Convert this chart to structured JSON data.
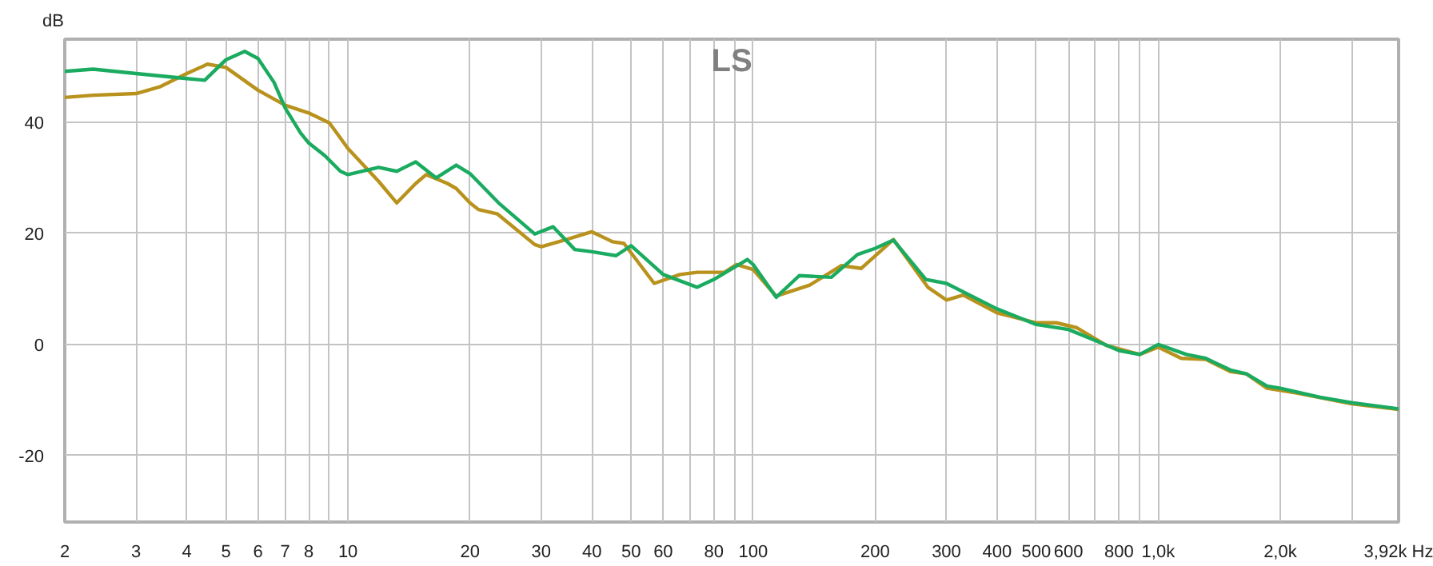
{
  "chart_data": {
    "type": "line",
    "title": "LS",
    "ylabel": "dB",
    "log": "x",
    "grid": true,
    "line_style": "solid",
    "xlim": [
      2,
      3920
    ],
    "ylim": [
      -32,
      55
    ],
    "xticks": [
      2,
      3,
      4,
      5,
      6,
      7,
      8,
      {
        "value": 9,
        "label": null
      },
      10,
      20,
      30,
      40,
      50,
      60,
      {
        "value": 70,
        "label": null
      },
      80,
      {
        "value": 90,
        "label": null
      },
      100,
      200,
      300,
      400,
      500,
      600,
      {
        "value": 700,
        "label": null
      },
      800,
      {
        "value": 900,
        "label": null
      },
      {
        "value": 1000,
        "label": "1,0k"
      },
      {
        "value": 2000,
        "label": "2,0k"
      },
      {
        "value": 3000,
        "label": null
      },
      {
        "value": 3920,
        "label": "3,92k Hz"
      }
    ],
    "yticks": [
      -20,
      0,
      20,
      40
    ],
    "series": [
      {
        "color": "#b8921c",
        "x": [
          2,
          2.35,
          3,
          3.43,
          4,
          4.5,
          5,
          6,
          7,
          8,
          9,
          10,
          11.9,
          13.2,
          14.7,
          15.6,
          17.6,
          18.5,
          20,
          21,
          23.4,
          28.9,
          30,
          34.6,
          40,
          45,
          48,
          57,
          66,
          72.8,
          85,
          91,
          100,
          114,
          138,
          165,
          185,
          222,
          270,
          300,
          330,
          400,
          500,
          560,
          630,
          745,
          900,
          1000,
          1140,
          1310,
          1506,
          1650,
          1855,
          2210,
          3000,
          3920
        ],
        "values": [
          44.5,
          44.9,
          45.2,
          46.4,
          48.8,
          50.5,
          49.9,
          45.8,
          43.1,
          41.7,
          39.9,
          35.3,
          29.4,
          25.5,
          29.0,
          30.6,
          29.0,
          28.1,
          25.5,
          24.3,
          23.5,
          18.0,
          17.6,
          18.9,
          20.3,
          18.5,
          18.2,
          11.0,
          12.6,
          13.0,
          13.0,
          14.4,
          13.5,
          8.7,
          10.7,
          14.2,
          13.7,
          18.9,
          10.3,
          8.0,
          8.9,
          5.7,
          3.9,
          3.9,
          3.0,
          -0.2,
          -1.8,
          -0.5,
          -2.5,
          -2.7,
          -4.9,
          -5.3,
          -7.9,
          -8.8,
          -10.7,
          -11.7
        ]
      },
      {
        "color": "#1aab60",
        "x": [
          2,
          2.35,
          3,
          4,
          4.43,
          5,
          5.56,
          6,
          6.57,
          7,
          7.64,
          8,
          8.77,
          9.58,
          10,
          11.9,
          13.2,
          14.7,
          16.5,
          18.5,
          20,
          23.7,
          28.9,
          32.1,
          36.3,
          40,
          45.9,
          50,
          60,
          72.8,
          80,
          96.8,
          100,
          114,
          130,
          156,
          181,
          200,
          222,
          267,
          300,
          400,
          500,
          600,
          700,
          800,
          900,
          1000,
          1174,
          1310,
          1506,
          1650,
          1855,
          2000,
          2508,
          3000,
          3920
        ],
        "values": [
          49.2,
          49.6,
          48.8,
          47.9,
          47.6,
          51.3,
          52.8,
          51.5,
          47.2,
          42.6,
          38.1,
          36.3,
          34.0,
          31.2,
          30.6,
          31.9,
          31.2,
          32.9,
          30.0,
          32.3,
          30.8,
          25.3,
          19.9,
          21.2,
          17.1,
          16.7,
          16.0,
          17.8,
          12.6,
          10.3,
          11.7,
          15.3,
          14.4,
          8.5,
          12.4,
          12.1,
          16.2,
          17.3,
          18.8,
          11.7,
          11.0,
          6.4,
          3.6,
          2.7,
          0.7,
          -1.1,
          -1.8,
          0.0,
          -1.8,
          -2.5,
          -4.6,
          -5.3,
          -7.5,
          -7.9,
          -9.5,
          -10.5,
          -11.6
        ]
      }
    ]
  }
}
